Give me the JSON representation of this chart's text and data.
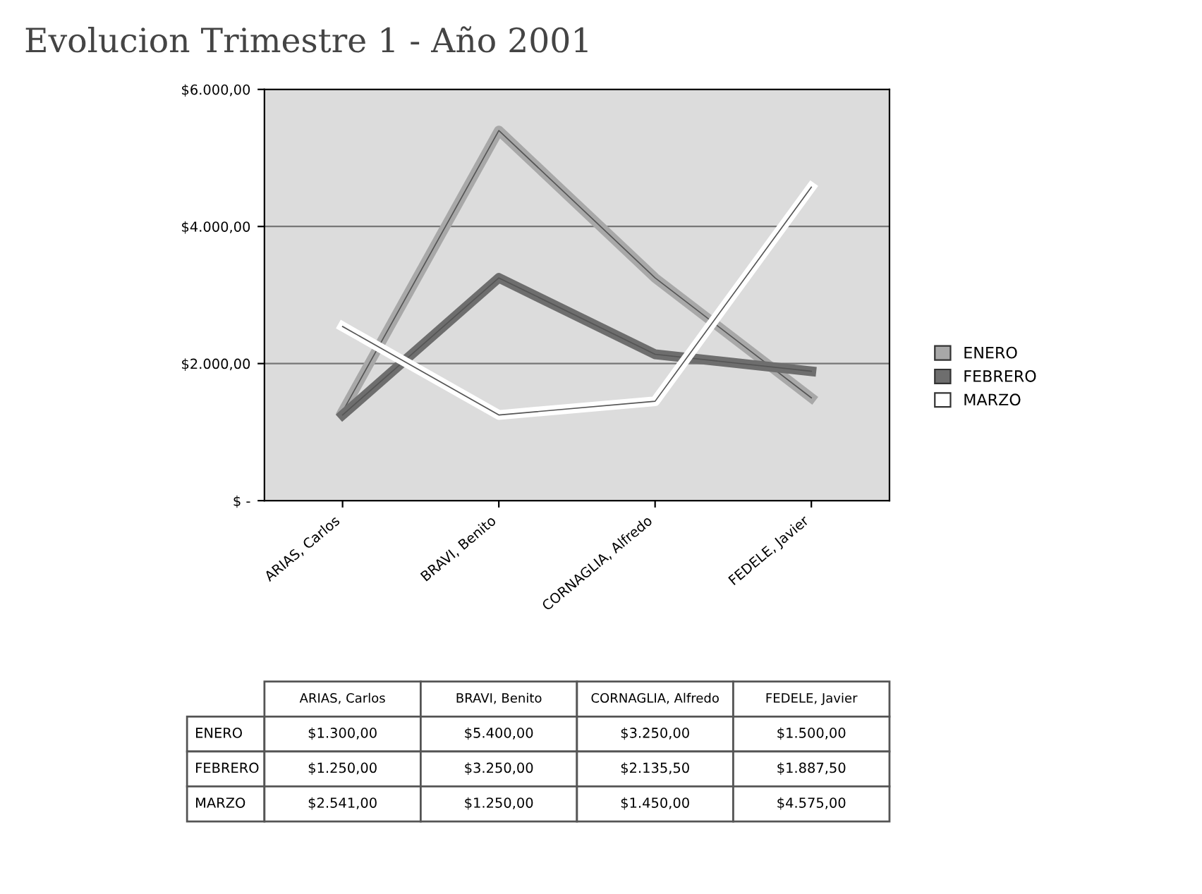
{
  "chart_data": {
    "type": "line",
    "title": "Evolucion Trimestre 1 - Año 2001",
    "categories": [
      "ARIAS, Carlos",
      "BRAVI, Benito",
      "CORNAGLIA, Alfredo",
      "FEDELE, Javier"
    ],
    "series": [
      {
        "name": "ENERO",
        "color": "#a8a8a8",
        "values": [
          1300,
          5400,
          3250,
          1500
        ],
        "value_labels": [
          "$1.300,00",
          "$5.400,00",
          "$3.250,00",
          "$1.500,00"
        ]
      },
      {
        "name": "FEBRERO",
        "color": "#6e6e6e",
        "values": [
          1250,
          3250,
          2135.5,
          1887.5
        ],
        "value_labels": [
          "$1.250,00",
          "$3.250,00",
          "$2.135,50",
          "$1.887,50"
        ]
      },
      {
        "name": "MARZO",
        "color": "#ffffff",
        "values": [
          2541,
          1250,
          1450,
          4575
        ],
        "value_labels": [
          "$2.541,00",
          "$1.250,00",
          "$1.450,00",
          "$4.575,00"
        ]
      }
    ],
    "ylim": [
      0,
      6000
    ],
    "yticks": [
      {
        "value": 0,
        "label": "$ -"
      },
      {
        "value": 2000,
        "label": "$2.000,00"
      },
      {
        "value": 4000,
        "label": "$4.000,00"
      },
      {
        "value": 6000,
        "label": "$6.000,00"
      }
    ],
    "grid": "y",
    "legend": "right",
    "marker": "none",
    "line_style": "solid"
  }
}
